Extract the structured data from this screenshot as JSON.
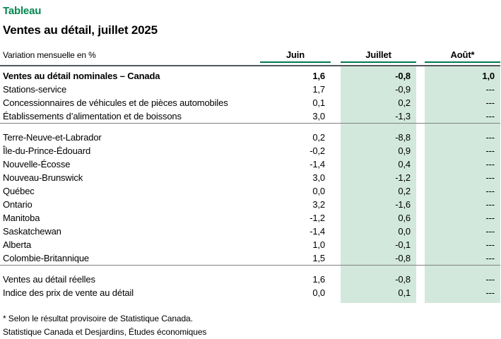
{
  "header": {
    "kicker": "Tableau",
    "title": "Ventes au détail, juillet 2025"
  },
  "chart_data": {
    "type": "table",
    "title": "Ventes au détail, juillet 2025",
    "unit_label": "Variation mensuelle en %",
    "columns": [
      "Juin",
      "Juillet",
      "Août*"
    ],
    "highlighted_columns": [
      "Juillet",
      "Août*"
    ],
    "sections": [
      {
        "name": "ventes-nominales",
        "rows": [
          {
            "label": "Ventes au détail nominales – Canada",
            "bold": true,
            "values": [
              "1,6",
              "-0,8",
              "1,0"
            ]
          },
          {
            "label": "Stations-service",
            "bold": false,
            "values": [
              "1,7",
              "-0,9",
              "---"
            ]
          },
          {
            "label": "Concessionnaires de véhicules et de pièces automobiles",
            "bold": false,
            "values": [
              "0,1",
              "0,2",
              "---"
            ]
          },
          {
            "label": "Établissements d’alimentation et de boissons",
            "bold": false,
            "values": [
              "3,0",
              "-1,3",
              "---"
            ]
          }
        ]
      },
      {
        "name": "provinces",
        "rows": [
          {
            "label": "Terre-Neuve-et-Labrador",
            "bold": false,
            "values": [
              "0,2",
              "-8,8",
              "---"
            ]
          },
          {
            "label": "Île-du-Prince-Édouard",
            "bold": false,
            "values": [
              "-0,2",
              "0,9",
              "---"
            ]
          },
          {
            "label": "Nouvelle-Écosse",
            "bold": false,
            "values": [
              "-1,4",
              "0,4",
              "---"
            ]
          },
          {
            "label": "Nouveau-Brunswick",
            "bold": false,
            "values": [
              "3,0",
              "-1,2",
              "---"
            ]
          },
          {
            "label": "Québec",
            "bold": false,
            "values": [
              "0,0",
              "0,2",
              "---"
            ]
          },
          {
            "label": "Ontario",
            "bold": false,
            "values": [
              "3,2",
              "-1,6",
              "---"
            ]
          },
          {
            "label": "Manitoba",
            "bold": false,
            "values": [
              "-1,2",
              "0,6",
              "---"
            ]
          },
          {
            "label": "Saskatchewan",
            "bold": false,
            "values": [
              "-1,4",
              "0,0",
              "---"
            ]
          },
          {
            "label": "Alberta",
            "bold": false,
            "values": [
              "1,0",
              "-0,1",
              "---"
            ]
          },
          {
            "label": "Colombie-Britannique",
            "bold": false,
            "values": [
              "1,5",
              "-0,8",
              "---"
            ]
          }
        ]
      },
      {
        "name": "reelles-et-prix",
        "rows": [
          {
            "label": "Ventes au détail réelles",
            "bold": false,
            "values": [
              "1,6",
              "-0,8",
              "---"
            ]
          },
          {
            "label": "Indice des prix de vente au détail",
            "bold": false,
            "values": [
              "0,0",
              "0,1",
              "---"
            ]
          }
        ]
      }
    ]
  },
  "footnotes": [
    "* Selon le résultat provisoire de Statistique Canada.",
    "Statistique Canada et Desjardins, Études économiques"
  ],
  "colors": {
    "accent_green": "#00874e",
    "header_underline_green": "#00794d",
    "column_band_green": "#d2e8dc",
    "header_rule_dark": "#53565a",
    "section_rule_gray": "#808080"
  }
}
